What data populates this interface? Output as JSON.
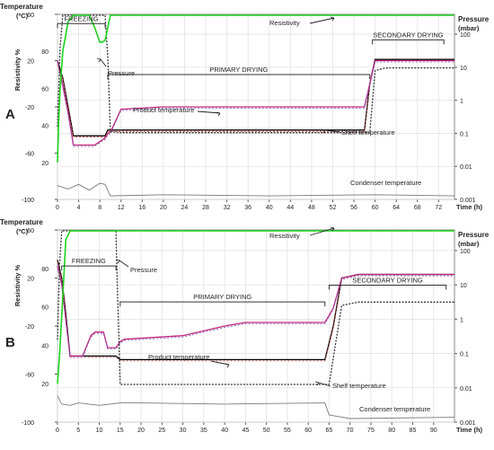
{
  "chart_data": [
    {
      "type": "line",
      "panel_label": "A",
      "left_axis_title": "Temperature",
      "left_axis_unit": "(ºC)",
      "resistivity_axis_label": "Resistivity %",
      "right_axis_title": "Pressure",
      "right_axis_unit": "(mbar)",
      "xlabel": "Time (h)",
      "xlim": [
        0,
        75
      ],
      "x_ticks": [
        "0",
        "4",
        "8",
        "12",
        "16",
        "20",
        "24",
        "28",
        "32",
        "36",
        "40",
        "44",
        "48",
        "52",
        "56",
        "60",
        "64",
        "68",
        "72"
      ],
      "temp_ticks": [
        "-100",
        "-60",
        "-20",
        "20",
        "60"
      ],
      "resistivity_ticks": [
        "20",
        "40",
        "60",
        "80"
      ],
      "pressure_ticks": [
        "0.001",
        "0.01",
        "0.1",
        "1",
        "10",
        "100"
      ],
      "temp_ylim": [
        -100,
        60
      ],
      "pressure_ylim_log10": [
        -3,
        2.6
      ],
      "phases": [
        {
          "label": "FREEZING",
          "x_range": [
            0,
            9
          ]
        },
        {
          "label": "PRIMARY DRYING",
          "x_range": [
            9.5,
            59
          ]
        },
        {
          "label": "SECONDARY DRYING",
          "x_range": [
            59.5,
            73
          ]
        }
      ],
      "annotations": [
        "Resistivity",
        "Pressure",
        "Product temperature",
        "Shelf temperature",
        "Condenser temperature"
      ],
      "series": [
        {
          "name": "Shelf temperature",
          "color": "#000000",
          "x": [
            0,
            1,
            2,
            3,
            4,
            5,
            6,
            7,
            8,
            9,
            9.5,
            10,
            12,
            58,
            59,
            60,
            62,
            75
          ],
          "y": [
            20,
            5,
            -20,
            -45,
            -45,
            -45,
            -45,
            -45,
            -45,
            -45,
            -40,
            -40,
            -40,
            -40,
            0,
            21,
            21,
            21
          ]
        },
        {
          "name": "Product temperature",
          "color": "#c0267a",
          "x": [
            0,
            1,
            2,
            3,
            4,
            5,
            6,
            7,
            8,
            9,
            9.5,
            10,
            12,
            20,
            58,
            59,
            60,
            62,
            75
          ],
          "y": [
            20,
            -2,
            -25,
            -53,
            -53,
            -53,
            -53,
            -53,
            -50,
            -47,
            -43,
            -42,
            -22,
            -20,
            -20,
            0,
            20,
            20,
            20
          ]
        },
        {
          "name": "Condenser temperature",
          "color": "#7a7a7a",
          "x": [
            0,
            2,
            4,
            6,
            8,
            9,
            10,
            20,
            40,
            60,
            75
          ],
          "y": [
            -88,
            -91,
            -87,
            -92,
            -86,
            -87,
            -97,
            -96,
            -97,
            -96,
            -97
          ]
        },
        {
          "name": "Pressure",
          "axis": "right_log10",
          "color": "#333333",
          "x": [
            0,
            0.5,
            1,
            9,
            9.5,
            10,
            12,
            59,
            60,
            62,
            75
          ],
          "y_log10": [
            -0.8,
            1.6,
            2.6,
            2.6,
            1.3,
            -0.95,
            -0.98,
            -0.98,
            0.9,
            0.98,
            0.98
          ]
        },
        {
          "name": "Resistivity",
          "axis": "resistivity",
          "color": "#1bd41b",
          "x": [
            0,
            0.2,
            0.5,
            1,
            2,
            3,
            3.5,
            4,
            6,
            7,
            8,
            8.5,
            9,
            10,
            11,
            75
          ],
          "y": [
            20,
            40,
            60,
            80,
            96,
            100,
            100,
            100,
            100,
            93,
            85,
            85,
            86,
            100,
            102,
            102
          ]
        }
      ]
    },
    {
      "type": "line",
      "panel_label": "B",
      "left_axis_title": "Temperature",
      "left_axis_unit": "(ºC)",
      "resistivity_axis_label": "Resistivity %",
      "right_axis_title": "Pressure",
      "right_axis_unit": "(mbar)",
      "xlabel": "Time (h)",
      "xlim": [
        0,
        95
      ],
      "x_ticks": [
        "0",
        "5",
        "10",
        "15",
        "20",
        "25",
        "30",
        "35",
        "40",
        "45",
        "50",
        "55",
        "60",
        "65",
        "70",
        "75",
        "80",
        "85",
        "90"
      ],
      "temp_ticks": [
        "-100",
        "-60",
        "-20",
        "20",
        "60"
      ],
      "resistivity_ticks": [
        "20",
        "40",
        "60",
        "80"
      ],
      "pressure_ticks": [
        "0.001",
        "0.01",
        "0.1",
        "1",
        "10",
        "100"
      ],
      "temp_ylim": [
        -100,
        60
      ],
      "pressure_ylim_log10": [
        -3,
        2.6
      ],
      "phases": [
        {
          "label": "FREEZING",
          "x_range": [
            1,
            14
          ]
        },
        {
          "label": "PRIMARY DRYING",
          "x_range": [
            15,
            64
          ]
        },
        {
          "label": "SECONDARY DRYING",
          "x_range": [
            65,
            93
          ]
        }
      ],
      "annotations": [
        "Resistivity",
        "Pressure",
        "Product temperature",
        "Shelf temperature",
        "Condenser temperature"
      ],
      "series": [
        {
          "name": "Shelf temperature",
          "color": "#000000",
          "x": [
            0,
            1,
            2,
            3,
            6,
            8,
            10,
            12,
            13,
            14,
            15,
            64,
            66,
            68,
            72,
            95
          ],
          "y": [
            35,
            20,
            -10,
            -45,
            -45,
            -45,
            -45,
            -45,
            -45,
            -45,
            -48,
            -48,
            -20,
            20,
            23,
            23
          ]
        },
        {
          "name": "Product temperature",
          "color": "#c0267a",
          "x": [
            0,
            1,
            2,
            3,
            6,
            8,
            9,
            10,
            11,
            12,
            13,
            14,
            15,
            16,
            30,
            40,
            45,
            64,
            66,
            68,
            72,
            95
          ],
          "y": [
            30,
            15,
            -15,
            -45,
            -45,
            -28,
            -25,
            -25,
            -25,
            -38,
            -38,
            -38,
            -33,
            -31,
            -28,
            -20,
            -17,
            -17,
            -5,
            20,
            23,
            23
          ]
        },
        {
          "name": "Condenser temperature",
          "color": "#7a7a7a",
          "x": [
            0,
            1,
            3,
            5,
            10,
            15,
            20,
            40,
            64,
            65,
            70,
            95
          ],
          "y": [
            -78,
            -85,
            -86,
            -84,
            -86,
            -84,
            -84,
            -85,
            -84,
            -94,
            -97,
            -96
          ]
        },
        {
          "name": "Pressure",
          "axis": "right_log10",
          "color": "#333333",
          "x": [
            0,
            0.5,
            1,
            14,
            14.2,
            15,
            64,
            65,
            68,
            72,
            95
          ],
          "y_log10": [
            -0.6,
            1.6,
            2.6,
            2.6,
            1.5,
            -1.9,
            -1.9,
            -1.9,
            0.4,
            0.5,
            0.5
          ]
        },
        {
          "name": "Resistivity",
          "axis": "resistivity",
          "color": "#1bd41b",
          "x": [
            0,
            0.5,
            1,
            1.5,
            2,
            3,
            95
          ],
          "y": [
            20,
            35,
            55,
            75,
            95,
            102,
            102
          ]
        }
      ]
    }
  ]
}
